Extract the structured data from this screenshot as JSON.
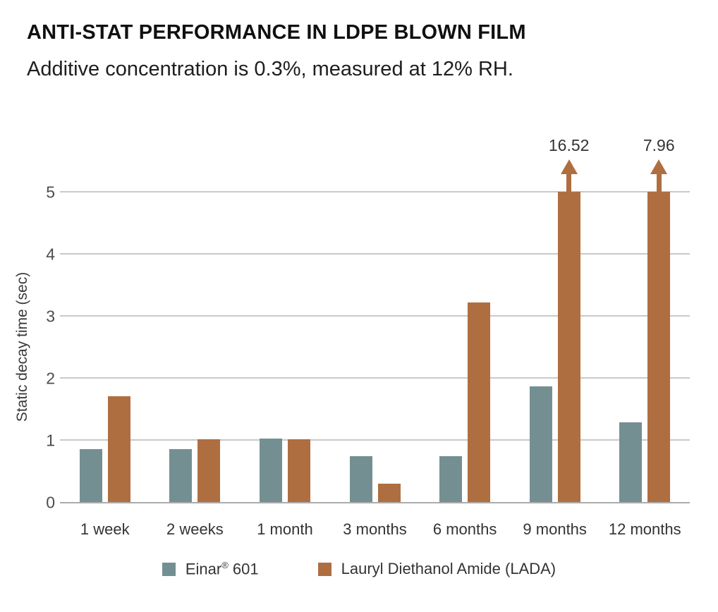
{
  "header": {
    "title": "ANTI-STAT PERFORMANCE IN LDPE BLOWN FILM",
    "subtitle": "Additive concentration is 0.3%, measured at 12% RH."
  },
  "chart_data": {
    "type": "bar",
    "title": "ANTI-STAT PERFORMANCE IN LDPE BLOWN FILM",
    "subtitle": "Additive concentration is 0.3%, measured at 12% RH.",
    "categories": [
      "1 week",
      "2 weeks",
      "1 month",
      "3 months",
      "6 months",
      "9 months",
      "12 months"
    ],
    "series": [
      {
        "name": "Einar® 601",
        "slug": "einar-601",
        "color": "#748F92",
        "values": [
          0.85,
          0.85,
          1.02,
          0.74,
          0.74,
          1.86,
          1.28
        ]
      },
      {
        "name": "Lauryl Diethanol Amide (LADA)",
        "slug": "lada",
        "color": "#AF6E40",
        "values": [
          1.7,
          1.01,
          1.01,
          0.29,
          3.22,
          16.52,
          7.96
        ]
      }
    ],
    "xlabel": "",
    "ylabel": "Static decay time (sec)",
    "yticks": [
      0,
      1,
      2,
      3,
      4,
      5
    ],
    "ylim": [
      0,
      5
    ],
    "clip_max": 5,
    "overflow_annotations": [
      {
        "category": "9 months",
        "series": "Lauryl Diethanol Amide (LADA)",
        "label": "16.52"
      },
      {
        "category": "12 months",
        "series": "Lauryl Diethanol Amide (LADA)",
        "label": "7.96"
      }
    ],
    "grid": "horizontal",
    "legend_position": "bottom"
  },
  "legend": {
    "items": [
      {
        "slug": "einar-601",
        "color": "#748F92",
        "parts": [
          {
            "text": "Einar"
          },
          {
            "text": "®",
            "sup": true
          },
          {
            "text": " 601"
          }
        ]
      },
      {
        "slug": "lada",
        "color": "#AF6E40",
        "parts": [
          {
            "text": "Lauryl Diethanol Amide (LADA)"
          }
        ]
      }
    ]
  },
  "colors": {
    "einar_601": "#748F92",
    "lada": "#AF6E40",
    "gridline": "#c9c9c9",
    "baseline": "#ababab",
    "title_text": "#101010",
    "axis_text": "#4d4d4d",
    "label_text": "#333333"
  }
}
